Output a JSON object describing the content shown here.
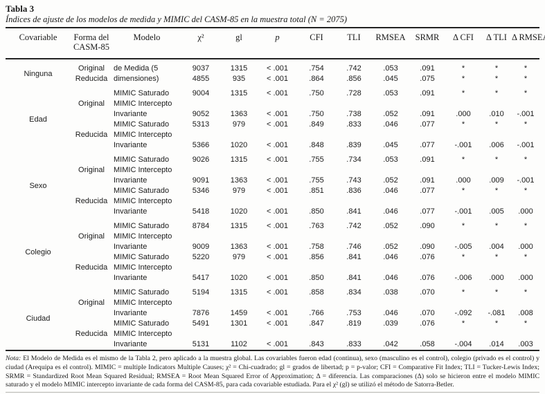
{
  "title": {
    "number": "Tabla 3",
    "caption": "Índices de ajuste de los modelos de medida y MIMIC del CASM-85 en la muestra total (N = 2075)"
  },
  "table": {
    "headers": {
      "covariable": "Covariable",
      "forma": "Forma del CASM-85",
      "modelo": "Modelo",
      "chi2": "χ²",
      "gl": "gl",
      "p": "p",
      "cfi": "CFI",
      "tli": "TLI",
      "rmsea": "RMSEA",
      "srmr": "SRMR",
      "delta_cfi": "Δ CFI",
      "delta_tli": "Δ TLI",
      "delta_rmsea": "Δ RMSEA"
    },
    "value_columns": [
      "chi2",
      "gl",
      "p",
      "cfi",
      "tli",
      "rmsea",
      "srmr",
      "delta-cfi",
      "delta-tli",
      "delta-rmsea"
    ],
    "groups": [
      {
        "covariable": "Ninguna",
        "blocks": [
          {
            "forma": "Original",
            "lines": [
              {
                "modelo": "de Medida (5",
                "values": [
                  "9037",
                  "1315",
                  "< .001",
                  ".754",
                  ".742",
                  ".053",
                  ".091",
                  "*",
                  "*",
                  "*"
                ]
              }
            ]
          },
          {
            "forma": "Reducida",
            "lines": [
              {
                "modelo": "dimensiones)",
                "values": [
                  "4855",
                  "935",
                  "< .001",
                  ".864",
                  ".856",
                  ".045",
                  ".075",
                  "*",
                  "*",
                  "*"
                ]
              }
            ]
          }
        ]
      },
      {
        "covariable": "Edad",
        "blocks": [
          {
            "forma": "Original",
            "lines": [
              {
                "modelo": "MIMIC Saturado",
                "values": [
                  "9004",
                  "1315",
                  "< .001",
                  ".750",
                  ".728",
                  ".053",
                  ".091",
                  "*",
                  "*",
                  "*"
                ]
              },
              {
                "modelo": "MIMIC Intercepto",
                "values": null
              },
              {
                "modelo": "Invariante",
                "values": [
                  "9052",
                  "1363",
                  "< .001",
                  ".750",
                  ".738",
                  ".052",
                  ".091",
                  ".000",
                  ".010",
                  "-.001"
                ]
              }
            ]
          },
          {
            "forma": "Reducida",
            "lines": [
              {
                "modelo": "MIMIC Saturado",
                "values": [
                  "5313",
                  "979",
                  "< .001",
                  ".849",
                  ".833",
                  ".046",
                  ".077",
                  "*",
                  "*",
                  "*"
                ]
              },
              {
                "modelo": "MIMIC Intercepto",
                "values": null
              },
              {
                "modelo": "Invariante",
                "values": [
                  "5366",
                  "1020",
                  "< .001",
                  ".848",
                  ".839",
                  ".045",
                  ".077",
                  "-.001",
                  ".006",
                  "-.001"
                ]
              }
            ]
          }
        ]
      },
      {
        "covariable": "Sexo",
        "blocks": [
          {
            "forma": "Original",
            "lines": [
              {
                "modelo": "MIMIC Saturado",
                "values": [
                  "9026",
                  "1315",
                  "< .001",
                  ".755",
                  ".734",
                  ".053",
                  ".091",
                  "*",
                  "*",
                  "*"
                ]
              },
              {
                "modelo": "MIMIC Intercepto",
                "values": null
              },
              {
                "modelo": "Invariante",
                "values": [
                  "9091",
                  "1363",
                  "< .001",
                  ".755",
                  ".743",
                  ".052",
                  ".091",
                  ".000",
                  ".009",
                  "-.001"
                ]
              }
            ]
          },
          {
            "forma": "Reducida",
            "lines": [
              {
                "modelo": "MIMIC Saturado",
                "values": [
                  "5346",
                  "979",
                  "< .001",
                  ".851",
                  ".836",
                  ".046",
                  ".077",
                  "*",
                  "*",
                  "*"
                ]
              },
              {
                "modelo": "MIMIC Intercepto",
                "values": null
              },
              {
                "modelo": "Invariante",
                "values": [
                  "5418",
                  "1020",
                  "< .001",
                  ".850",
                  ".841",
                  ".046",
                  ".077",
                  "-.001",
                  ".005",
                  ".000"
                ]
              }
            ]
          }
        ]
      },
      {
        "covariable": "Colegio",
        "blocks": [
          {
            "forma": "Original",
            "lines": [
              {
                "modelo": "MIMIC Saturado",
                "values": [
                  "8784",
                  "1315",
                  "< .001",
                  ".763",
                  ".742",
                  ".052",
                  ".090",
                  "*",
                  "*",
                  "*"
                ]
              },
              {
                "modelo": "MIMIC Intercepto",
                "values": null
              },
              {
                "modelo": "Invariante",
                "values": [
                  "9009",
                  "1363",
                  "< .001",
                  ".758",
                  ".746",
                  ".052",
                  ".090",
                  "-.005",
                  ".004",
                  ".000"
                ]
              }
            ]
          },
          {
            "forma": "Reducida",
            "lines": [
              {
                "modelo": "MIMIC Saturado",
                "values": [
                  "5220",
                  "979",
                  "< .001",
                  ".856",
                  ".841",
                  ".046",
                  ".076",
                  "*",
                  "*",
                  "*"
                ]
              },
              {
                "modelo": "MIMIC Intercepto",
                "values": null
              },
              {
                "modelo": "Invariante",
                "values": [
                  "5417",
                  "1020",
                  "< .001",
                  ".850",
                  ".841",
                  ".046",
                  ".076",
                  "-.006",
                  ".000",
                  ".000"
                ]
              }
            ]
          }
        ]
      },
      {
        "covariable": "Ciudad",
        "blocks": [
          {
            "forma": "Original",
            "lines": [
              {
                "modelo": "MIMIC Saturado",
                "values": [
                  "5194",
                  "1315",
                  "< .001",
                  ".858",
                  ".834",
                  ".038",
                  ".070",
                  "*",
                  "*",
                  "*"
                ]
              },
              {
                "modelo": "MIMIC Intercepto",
                "values": null
              },
              {
                "modelo": "Invariante",
                "values": [
                  "7876",
                  "1459",
                  "< .001",
                  ".766",
                  ".753",
                  ".046",
                  ".070",
                  "-.092",
                  "-.081",
                  ".008"
                ]
              }
            ]
          },
          {
            "forma": "Reducida",
            "lines": [
              {
                "modelo": "MIMIC Saturado",
                "values": [
                  "5491",
                  "1301",
                  "< .001",
                  ".847",
                  ".819",
                  ".039",
                  ".076",
                  "*",
                  "*",
                  "*"
                ]
              },
              {
                "modelo": "MIMIC Intercepto",
                "values": null
              },
              {
                "modelo": "Invariante",
                "values": [
                  "5131",
                  "1102",
                  "< .001",
                  ".843",
                  ".833",
                  ".042",
                  ".058",
                  "-.004",
                  ".014",
                  ".003"
                ]
              }
            ]
          }
        ]
      }
    ]
  },
  "footnote": {
    "label": "Nota:",
    "text": " El Modelo de Medida es el mismo de la Tabla 2, pero aplicado a la muestra global. Las covariables fueron edad (continua), sexo (masculino es el control), colegio (privado es el control) y ciudad (Arequipa es el control). MIMIC = multiple Indicators Multiple Causes; χ² = Chi-cuadrado; gl = grados de libertad; p = p-valor; CFI = Comparative Fit Index; TLI = Tucker-Lewis Index; SRMR = Standardized Root Mean Squared Residual; RMSEA = Root Mean Squared Error of Approximation; Δ = diferencia. Las comparaciones (Δ) solo se hicieron entre el modelo MIMIC saturado y el modelo MIMIC intercepto invariante de cada forma del CASM-85, para cada covariable estudiada. Para el χ² (gl) se utilizó el método de Satorra-Betler."
  }
}
